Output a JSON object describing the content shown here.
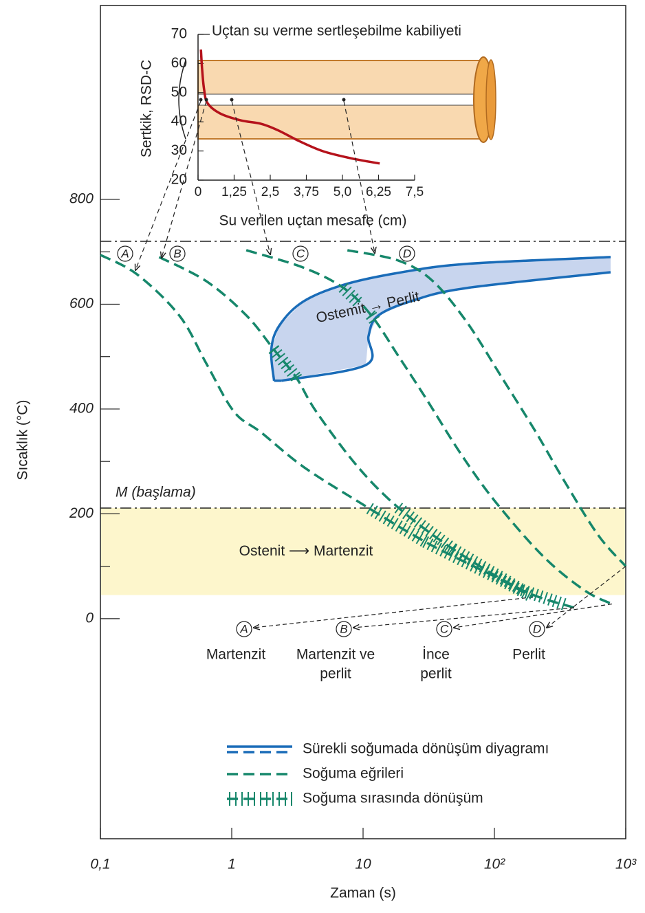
{
  "chart_data": {
    "type": "line",
    "xlabel": "Zaman (s)",
    "ylabel": "Sıcaklık (°C)",
    "xscale": "log",
    "xlim": [
      0.1,
      1000
    ],
    "ylim": [
      -420,
      1170
    ],
    "xticks": [
      {
        "value": 0.1,
        "label": "0,1"
      },
      1,
      10,
      {
        "value": 100,
        "label": "10²"
      },
      {
        "value": 1000,
        "label": "10³"
      }
    ],
    "yticks": [
      0,
      200,
      400,
      600,
      800
    ],
    "yminorticks": [
      100,
      300,
      500,
      700
    ],
    "series": [
      {
        "name": "A",
        "color": "#16876b",
        "x": [
          0.1,
          0.19,
          0.4,
          0.64,
          1.04,
          1.68,
          3.5,
          9.1,
          30,
          101,
          196
        ],
        "y": [
          694,
          657,
          578,
          487,
          395,
          355,
          290,
          224,
          146,
          80,
          41
        ],
        "hatch": [
          [
            211,
            45
          ]
        ]
      },
      {
        "name": "B",
        "color": "#16876b",
        "x": [
          0.28,
          0.64,
          1.3,
          2.1,
          3.1,
          4.4,
          9.1,
          18.7,
          49,
          164,
          405
        ],
        "y": [
          690,
          644,
          578,
          513,
          460,
          395,
          290,
          211,
          132,
          54,
          21
        ],
        "hatch": [
          [
            519,
            460
          ],
          [
            211,
            25
          ]
        ]
      },
      {
        "name": "C",
        "color": "#16876b",
        "x": [
          1.29,
          3.5,
          7.1,
          11.6,
          18.7,
          30,
          55,
          101,
          235,
          485,
          785
        ],
        "y": [
          703,
          670,
          631,
          578,
          500,
          421,
          316,
          224,
          119,
          54,
          28
        ],
        "hatch": [
          [
            631,
            605
          ],
          [
            585,
            565
          ]
        ]
      },
      {
        "name": "D",
        "color": "#16876b",
        "x": [
          7.6,
          18.7,
          34,
          62,
          114,
          208,
          338,
          618,
          1000
        ],
        "y": [
          703,
          683,
          644,
          565,
          460,
          355,
          264,
          159,
          100
        ],
        "hatch": []
      }
    ],
    "cct": {
      "color": "#1a6cb8",
      "fill": "#c8d5ee",
      "label": "Ostemit → Perlit",
      "start": {
        "x": [
          2.1,
          2.0,
          2.3,
          3.5,
          7.1,
          18.7,
          62,
          767
        ],
        "y": [
          454,
          513,
          559,
          605,
          637,
          660,
          677,
          690
        ]
      },
      "finish": {
        "x": [
          2.4,
          10.5,
          11,
          13,
          24,
          62,
          767
        ],
        "y": [
          454,
          484,
          539,
          578,
          607,
          631,
          661
        ]
      }
    },
    "reference_lines": [
      {
        "value": 720
      },
      {
        "value": 211,
        "label": "M (başlama)"
      }
    ],
    "region": {
      "ylim": [
        45,
        211
      ],
      "color": "#fdf6cc",
      "label": "Ostenit ⟶ Martenzit"
    },
    "products": [
      [
        "Martenzit"
      ],
      [
        "Martenzit ve",
        "perlit"
      ],
      [
        "İnce",
        "perlit"
      ],
      [
        "Perlit"
      ]
    ],
    "legend": [
      {
        "label": "Sürekli soğumada dönüşüm diyagramı",
        "color": "#1a6cb8",
        "style": "solid"
      },
      {
        "label": "Soğuma eğrileri",
        "color": "#16876b",
        "style": "dashed"
      },
      {
        "label": "Soğuma sırasında dönüşüm",
        "color": "#16876b",
        "style": "hatched"
      }
    ],
    "inset": {
      "title": "Uçtan su verme sertleşebilme kabiliyeti",
      "xlabel": "Su verilen uçtan mesafe (cm)",
      "ylabel": "Sertkik, RSD-C",
      "color": "#b5121b",
      "xlim": [
        0,
        7.5
      ],
      "ylim": [
        20,
        70
      ],
      "xticks": [
        0,
        {
          "value": 1.25,
          "label": "1,25"
        },
        {
          "value": 2.5,
          "label": "2,5"
        },
        {
          "value": 3.75,
          "label": "3,75"
        },
        {
          "value": 5.0,
          "label": "5,0"
        },
        {
          "value": 6.25,
          "label": "6,25"
        },
        {
          "value": 7.5,
          "label": "7,5"
        }
      ],
      "yticks": [
        20,
        30,
        40,
        50,
        60,
        70
      ],
      "x": [
        0.1,
        0.14,
        0.21,
        0.33,
        0.76,
        1.48,
        2.19,
        2.79,
        3.5,
        4.33,
        5.29,
        6.29
      ],
      "y": [
        64.8,
        58.2,
        51.1,
        46.4,
        42.9,
        40.5,
        39.3,
        37.0,
        33.4,
        29.9,
        27.5,
        25.7
      ]
    }
  }
}
